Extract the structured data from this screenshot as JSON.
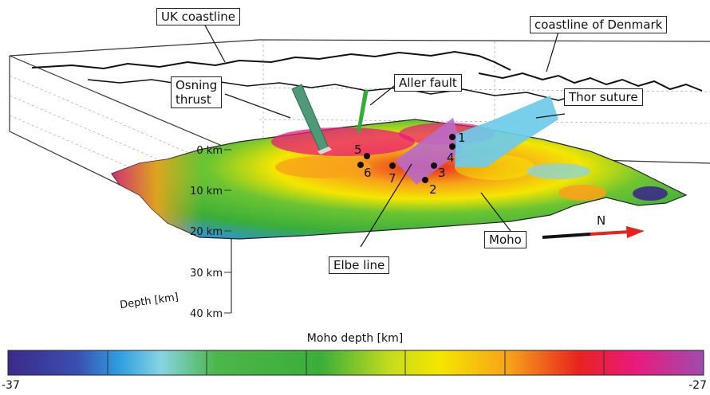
{
  "callouts": {
    "uk_coastline": "UK coastline",
    "denmark_coastline": "coastline of Denmark",
    "osning_thrust": "Osning\nthrust",
    "aller_fault": "Aller fault",
    "thor_suture": "Thor suture",
    "elbe_line": "Elbe line",
    "moho": "Moho"
  },
  "depth_axis": {
    "name": "Depth [km]",
    "ticks": [
      "0 km",
      "10 km",
      "20 km",
      "30 km",
      "40 km"
    ]
  },
  "north_arrow": {
    "label": "N"
  },
  "sites": [
    "1",
    "2",
    "3",
    "4",
    "5",
    "6",
    "7"
  ],
  "colorbar": {
    "title": "Moho depth [km]",
    "min_label": "-37",
    "max_label": "-27",
    "colors": [
      "#3b2a8a",
      "#2f93d3",
      "#7fd0e8",
      "#2fae3a",
      "#9ad12a",
      "#f5e600",
      "#f7a21a",
      "#e8231e",
      "#ea1a7a",
      "#a04bb0"
    ]
  }
}
